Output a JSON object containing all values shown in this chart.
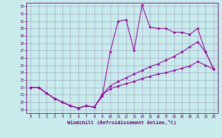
{
  "xlabel": "Windchill (Refroidissement éolien,°C)",
  "background_color": "#c8ecec",
  "line_color": "#990099",
  "xlim": [
    -0.5,
    23.5
  ],
  "ylim": [
    18.5,
    33.5
  ],
  "xticks": [
    0,
    1,
    2,
    3,
    4,
    5,
    6,
    7,
    8,
    9,
    10,
    11,
    12,
    13,
    14,
    15,
    16,
    17,
    18,
    19,
    20,
    21,
    22,
    23
  ],
  "yticks": [
    19,
    20,
    21,
    22,
    23,
    24,
    25,
    26,
    27,
    28,
    29,
    30,
    31,
    32,
    33
  ],
  "line1_x": [
    0,
    1,
    2,
    3,
    4,
    5,
    6,
    7,
    8,
    9,
    10,
    11,
    12,
    13,
    14,
    15,
    16,
    17,
    18,
    19,
    20,
    21,
    22,
    23
  ],
  "line1_y": [
    22.0,
    22.0,
    21.2,
    20.5,
    20.0,
    19.5,
    19.2,
    19.5,
    19.3,
    20.8,
    26.8,
    31.0,
    31.2,
    27.0,
    33.2,
    30.2,
    30.0,
    30.0,
    29.5,
    29.5,
    29.2,
    30.0,
    26.8,
    24.5
  ],
  "line2_x": [
    0,
    1,
    2,
    3,
    4,
    5,
    6,
    7,
    8,
    9,
    10,
    11,
    12,
    13,
    14,
    15,
    16,
    17,
    18,
    19,
    20,
    21,
    22,
    23
  ],
  "line2_y": [
    22.0,
    22.0,
    21.2,
    20.5,
    20.0,
    19.5,
    19.2,
    19.5,
    19.3,
    21.0,
    22.2,
    22.8,
    23.3,
    23.8,
    24.3,
    24.8,
    25.2,
    25.7,
    26.2,
    26.8,
    27.5,
    28.2,
    26.8,
    24.5
  ],
  "line3_x": [
    0,
    1,
    2,
    3,
    4,
    5,
    6,
    7,
    8,
    9,
    10,
    11,
    12,
    13,
    14,
    15,
    16,
    17,
    18,
    19,
    20,
    21,
    22,
    23
  ],
  "line3_y": [
    22.0,
    22.0,
    21.2,
    20.5,
    20.0,
    19.5,
    19.2,
    19.5,
    19.3,
    21.0,
    21.8,
    22.2,
    22.5,
    22.8,
    23.2,
    23.5,
    23.8,
    24.0,
    24.3,
    24.6,
    24.9,
    25.5,
    25.0,
    24.5
  ]
}
